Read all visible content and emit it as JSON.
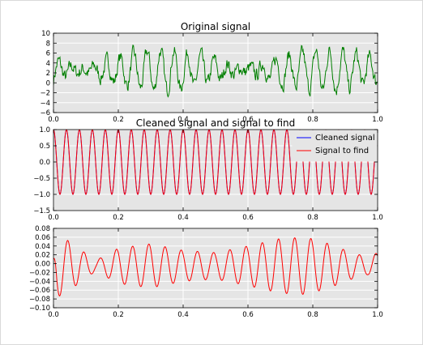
{
  "colors": {
    "axes_bg": "#e5e5e5",
    "grid": "#ffffff",
    "original": "#007f00",
    "cleaned": "#0000ff",
    "to_find": "#ff0000",
    "frame": "#cccccc"
  },
  "chart_data": [
    {
      "id": "original",
      "type": "line",
      "title": "Original signal",
      "xlabel": "",
      "ylabel": "",
      "xlim": [
        0,
        1
      ],
      "ylim": [
        -6,
        10
      ],
      "xticks": [
        0.0,
        0.2,
        0.4,
        0.6,
        0.8,
        1.0
      ],
      "xtick_labels": [
        "0.0",
        "0.2",
        "0.4",
        "0.6",
        "0.8",
        "1.0"
      ],
      "yticks": [
        -6,
        -4,
        -2,
        0,
        2,
        4,
        6,
        8,
        10
      ],
      "ytick_labels": [
        "−6",
        "−4",
        "−2",
        "0",
        "2",
        "4",
        "6",
        "8",
        "10"
      ],
      "grid": true,
      "series": [
        {
          "color": "#007f00",
          "description": "noisy oscillating signal, centre ~2.5, range about -4.5 to 9.5",
          "model": {
            "base": 2.5,
            "components": [
              [
                2.2,
                25
              ],
              [
                1.8,
                23
              ]
            ],
            "noise": 1.6,
            "samples": 600
          }
        }
      ]
    },
    {
      "id": "cleaned",
      "type": "line",
      "title": "Cleaned signal and signal to find",
      "xlabel": "",
      "ylabel": "",
      "xlim": [
        0,
        1
      ],
      "ylim": [
        -1.5,
        1.0
      ],
      "xticks": [
        0.0,
        0.2,
        0.4,
        0.6,
        0.8,
        1.0
      ],
      "xtick_labels": [
        "0.0",
        "0.2",
        "0.4",
        "0.6",
        "0.8",
        "1.0"
      ],
      "yticks": [
        -1.5,
        -1.0,
        -0.5,
        0.0,
        0.5,
        1.0
      ],
      "ytick_labels": [
        "−1.5",
        "−1.0",
        "−0.5",
        "0.0",
        "0.5",
        "1.0"
      ],
      "grid": true,
      "legend": {
        "placement": "top-right",
        "entries": [
          {
            "label": "Cleaned signal",
            "color": "#0000ff"
          },
          {
            "label": "Signal to find",
            "color": "#ff0000"
          }
        ]
      },
      "series": [
        {
          "name": "Cleaned signal",
          "color": "#0000ff",
          "model": {
            "amplitude": 1.0,
            "frequency": 25,
            "phase_cycles": 0.25,
            "samples": 800
          }
        },
        {
          "name": "Signal to find",
          "color": "#ff0000",
          "model": {
            "amplitude": 1.0,
            "frequency": 25,
            "phase_cycles": 0.25,
            "samples": 800
          }
        }
      ]
    },
    {
      "id": "difference",
      "type": "line",
      "title": "",
      "xlabel": "",
      "ylabel": "",
      "xlim": [
        0,
        1
      ],
      "ylim": [
        -0.1,
        0.08
      ],
      "xticks": [
        0.0,
        0.2,
        0.4,
        0.6,
        0.8,
        1.0
      ],
      "xtick_labels": [
        "0.0",
        "0.2",
        "0.4",
        "0.6",
        "0.8",
        "1.0"
      ],
      "yticks": [
        -0.1,
        -0.08,
        -0.06,
        -0.04,
        -0.02,
        0.0,
        0.02,
        0.04,
        0.06,
        0.08
      ],
      "ytick_labels": [
        "−0.10",
        "−0.08",
        "−0.06",
        "−0.04",
        "−0.02",
        "0.00",
        "0.02",
        "0.04",
        "0.06",
        "0.08"
      ],
      "grid": true,
      "series": [
        {
          "color": "#ff0000",
          "description": "small residual oscillation, amplitude ~0.01 to 0.07",
          "model": {
            "frequency": 20,
            "samples": 800,
            "envelope": [
              [
                0.0,
                0.02
              ],
              [
                0.01,
                0.072
              ],
              [
                0.05,
                0.055
              ],
              [
                0.13,
                0.012
              ],
              [
                0.2,
                0.04
              ],
              [
                0.3,
                0.05
              ],
              [
                0.4,
                0.035
              ],
              [
                0.5,
                0.03
              ],
              [
                0.6,
                0.045
              ],
              [
                0.7,
                0.062
              ],
              [
                0.78,
                0.065
              ],
              [
                0.85,
                0.05
              ],
              [
                0.92,
                0.03
              ],
              [
                0.97,
                0.02
              ],
              [
                1.0,
                0.03
              ]
            ]
          }
        }
      ]
    }
  ]
}
